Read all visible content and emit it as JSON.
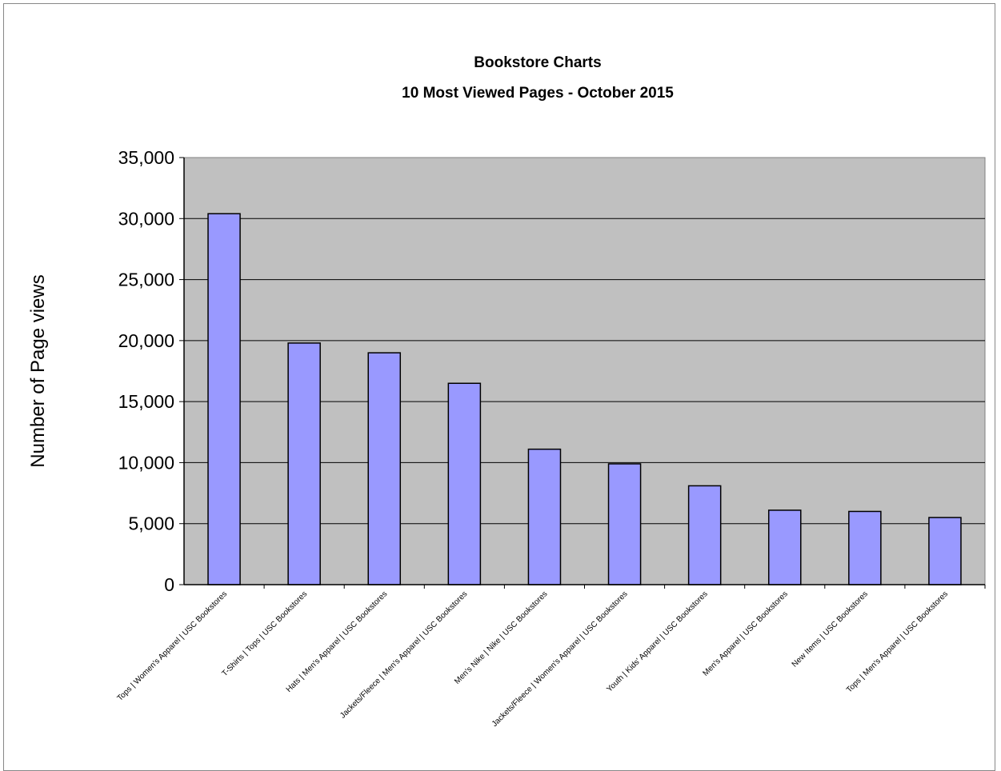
{
  "chart_data": {
    "type": "bar",
    "title": "Bookstore Charts",
    "subtitle": "10 Most Viewed Pages - October 2015",
    "xlabel": "",
    "ylabel": "Number of Page views",
    "ylim": [
      0,
      35000
    ],
    "yticks": [
      0,
      5000,
      10000,
      15000,
      20000,
      25000,
      30000,
      35000
    ],
    "ytick_labels": [
      "0",
      "5,000",
      "10,000",
      "15,000",
      "20,000",
      "25,000",
      "30,000",
      "35,000"
    ],
    "grid": true,
    "legend": "none",
    "categories": [
      "Tops | Women's Apparel | USC Bookstores",
      "T-Shirts | Tops | USC Bookstores",
      "Hats | Men's Apparel | USC Bookstores",
      "Jackets/Fleece | Men's Apparel | USC Bookstores",
      "Men's Nike | Nike | USC Bookstores",
      "Jackets/Fleece | Women's Apparel | USC Bookstores",
      "Youth | Kids' Apparel | USC Bookstores",
      "Men's Apparel | USC Bookstores",
      "New Items | USC Bookstores",
      "Tops | Men's Apparel | USC Bookstores"
    ],
    "values": [
      30400,
      19800,
      19000,
      16500,
      11100,
      9900,
      8100,
      6100,
      6000,
      5500
    ],
    "colors": {
      "bar_fill": "#9999ff",
      "bar_stroke": "#000000",
      "plot_background": "#c0c0c0",
      "gridline": "#000000"
    }
  }
}
